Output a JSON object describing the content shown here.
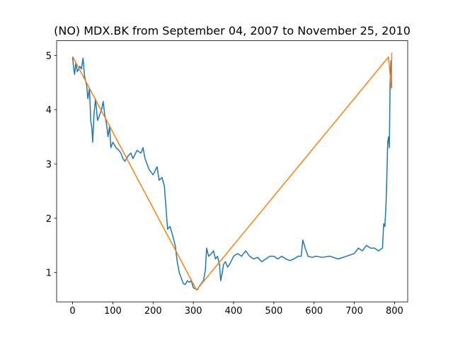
{
  "chart_data": {
    "type": "line",
    "title": "(NO) MDX.BK from September 04, 2007 to November 25, 2010",
    "series": [
      {
        "color": "#1f77b4",
        "x": [
          0,
          3,
          5,
          8,
          12,
          18,
          22,
          26,
          30,
          35,
          38,
          42,
          45,
          48,
          50,
          53,
          57,
          62,
          67,
          72,
          76,
          80,
          85,
          88,
          92,
          95,
          100,
          108,
          115,
          120,
          125,
          130,
          138,
          145,
          150,
          160,
          170,
          175,
          180,
          190,
          200,
          210,
          215,
          222,
          228,
          232,
          236,
          242,
          248,
          255,
          260,
          265,
          270,
          275,
          280,
          285,
          290,
          295,
          300,
          305,
          310,
          315,
          320,
          325,
          330,
          333,
          338,
          345,
          350,
          355,
          360,
          365,
          368,
          372,
          375,
          380,
          385,
          390,
          400,
          410,
          420,
          430,
          440,
          450,
          460,
          470,
          480,
          490,
          500,
          510,
          520,
          530,
          540,
          550,
          560,
          568,
          572,
          578,
          585,
          595,
          605,
          620,
          640,
          660,
          680,
          700,
          710,
          720,
          730,
          740,
          750,
          760,
          770,
          773,
          776,
          779,
          781,
          783,
          785,
          787,
          789,
          791,
          793
        ],
        "values": [
          4.97,
          4.75,
          4.65,
          4.85,
          4.7,
          4.8,
          4.75,
          4.95,
          4.6,
          4.45,
          4.2,
          4.4,
          3.8,
          3.65,
          3.4,
          3.9,
          4.2,
          3.8,
          3.9,
          4.0,
          4.15,
          3.9,
          3.7,
          3.5,
          3.7,
          3.3,
          3.4,
          3.3,
          3.25,
          3.2,
          3.1,
          3.05,
          3.15,
          3.2,
          3.1,
          3.25,
          3.2,
          3.3,
          3.1,
          2.9,
          2.8,
          2.95,
          2.7,
          2.75,
          2.6,
          2.2,
          1.8,
          1.85,
          1.7,
          1.5,
          1.2,
          1.0,
          0.9,
          0.8,
          0.78,
          0.85,
          0.82,
          0.85,
          0.72,
          0.7,
          0.68,
          0.75,
          0.8,
          0.85,
          1.05,
          1.45,
          1.3,
          1.35,
          1.4,
          1.25,
          1.3,
          1.15,
          0.85,
          1.0,
          1.15,
          1.2,
          1.1,
          1.15,
          1.3,
          1.35,
          1.3,
          1.4,
          1.3,
          1.25,
          1.28,
          1.2,
          1.25,
          1.3,
          1.3,
          1.25,
          1.3,
          1.25,
          1.22,
          1.25,
          1.3,
          1.3,
          1.6,
          1.45,
          1.3,
          1.28,
          1.3,
          1.28,
          1.3,
          1.25,
          1.3,
          1.35,
          1.45,
          1.4,
          1.5,
          1.45,
          1.45,
          1.4,
          1.45,
          1.9,
          1.85,
          2.3,
          2.8,
          3.4,
          3.5,
          3.3,
          4.5,
          4.9,
          4.4
        ]
      },
      {
        "color": "#ff7f0e",
        "x": [
          0,
          308,
          785,
          792,
          793
        ],
        "values": [
          4.98,
          0.68,
          4.97,
          4.4,
          5.05
        ]
      }
    ],
    "xlim": [
      -39.65,
      832.65
    ],
    "xticks": [
      0,
      100,
      200,
      300,
      400,
      500,
      600,
      700,
      800
    ],
    "ylim": [
      0.46,
      5.27
    ],
    "yticks": [
      1,
      2,
      3,
      4,
      5
    ]
  }
}
